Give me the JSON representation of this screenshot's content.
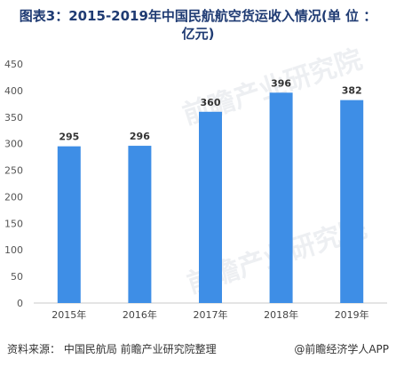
{
  "title_line1": "图表3：2015-2019年中国民航航空货运收入情况(单 位 ：",
  "title_line2": "亿元)",
  "chart_data": {
    "type": "bar",
    "categories": [
      "2015年",
      "2016年",
      "2017年",
      "2018年",
      "2019年"
    ],
    "values": [
      295,
      296,
      360,
      396,
      382
    ],
    "ylim": [
      0,
      450
    ],
    "yticks": [
      0,
      50,
      100,
      150,
      200,
      250,
      300,
      350,
      400,
      450
    ],
    "bar_color": "#3e8ee6",
    "grid": false,
    "legend": "none",
    "show_data_labels": true
  },
  "watermark": "前瞻产业研究院",
  "footer": {
    "source": "资料来源：  中国民航局 前瞻产业研究院整理",
    "brand": "@前瞻经济学人APP"
  }
}
